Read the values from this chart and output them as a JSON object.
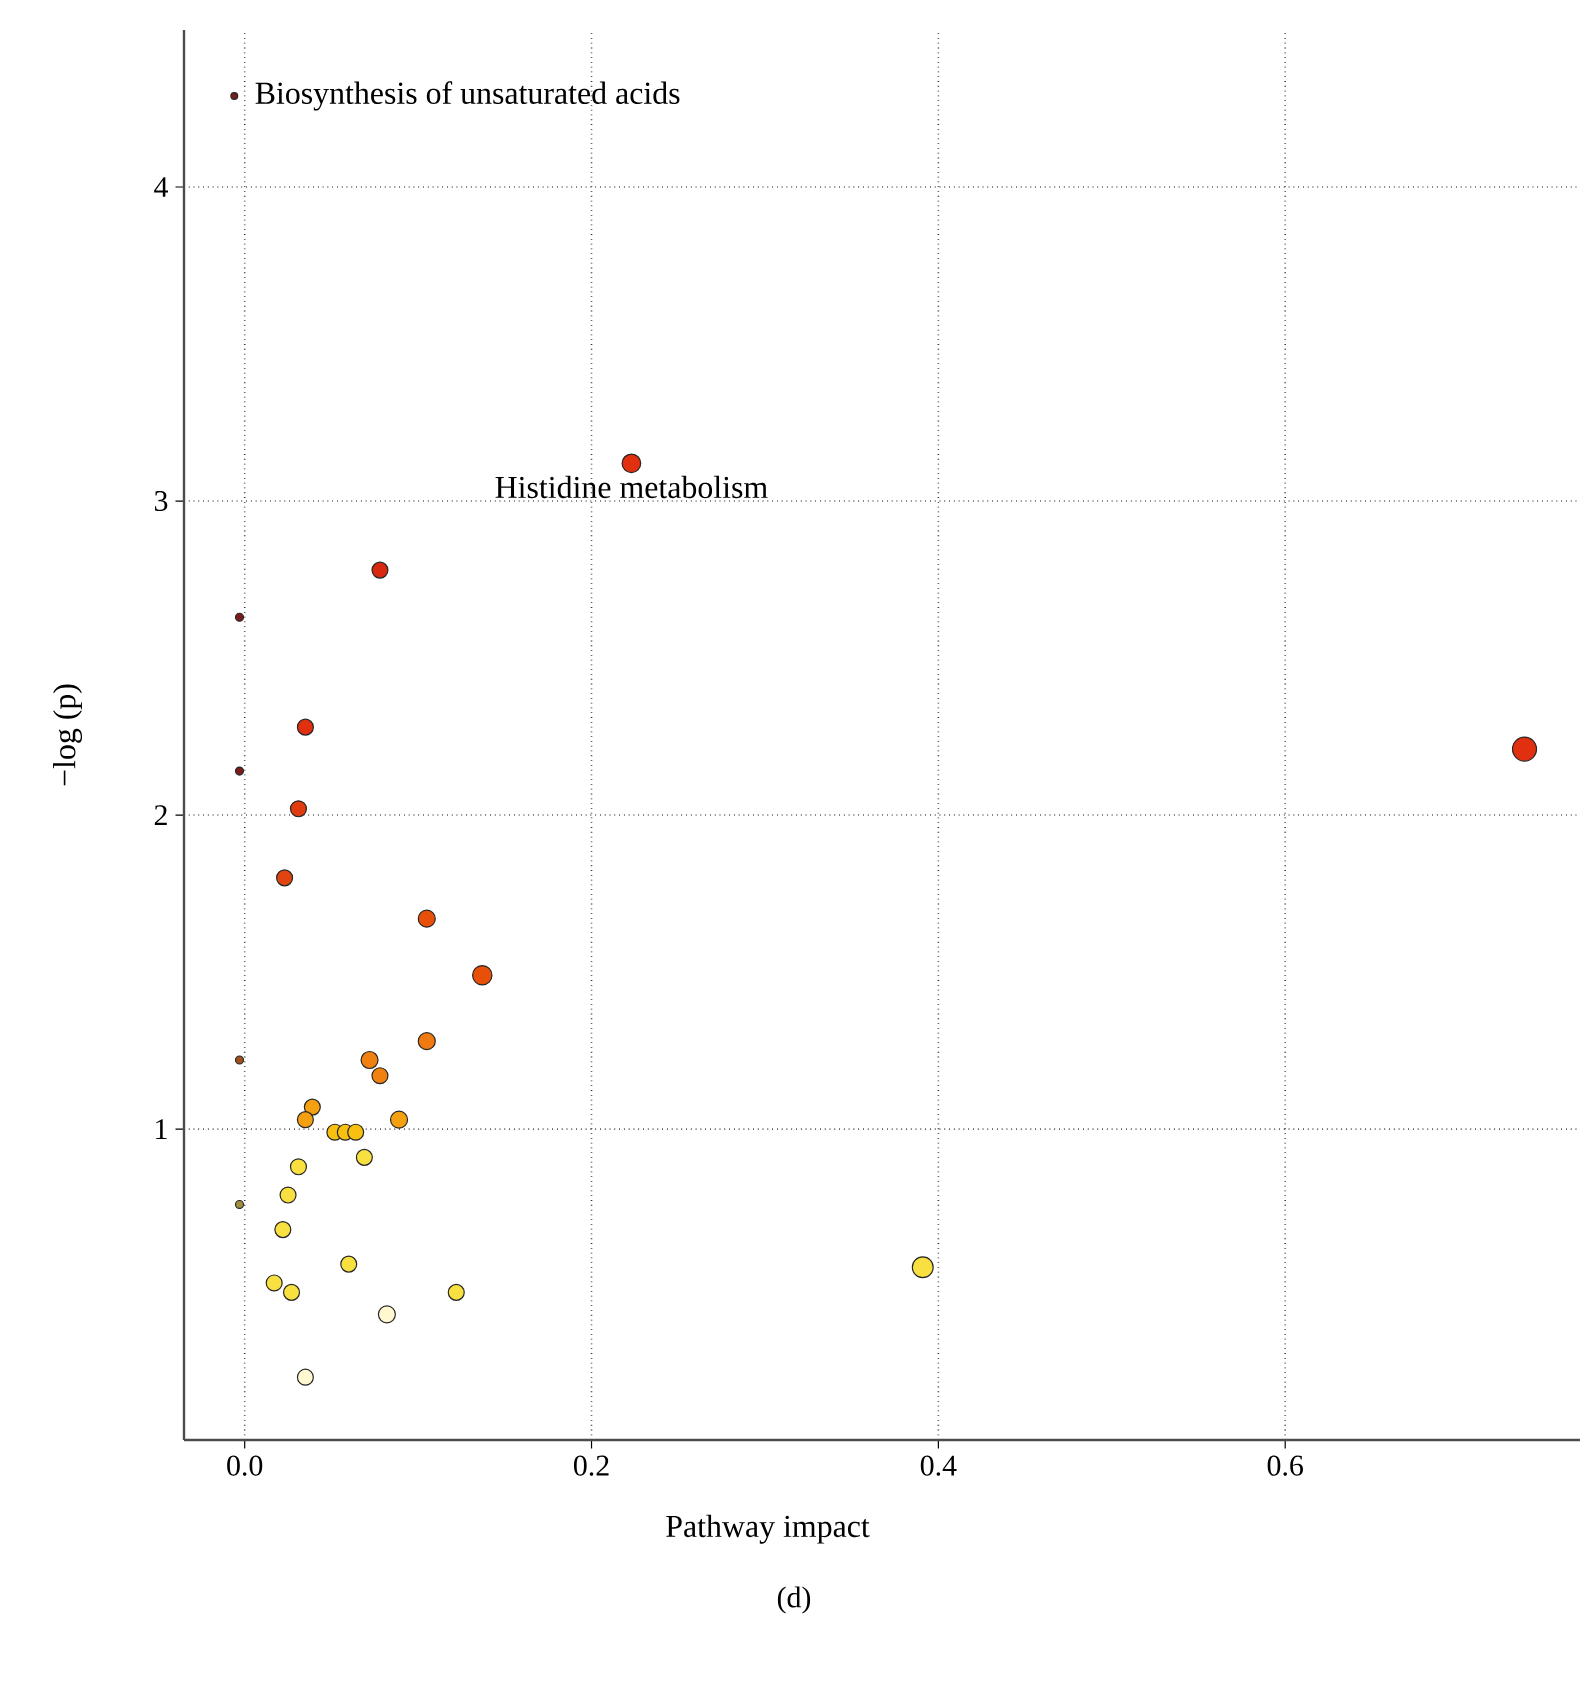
{
  "chart_data": {
    "type": "bubble",
    "xlabel": "Pathway impact",
    "ylabel": "−log (p)",
    "annotations": [
      {
        "text": "Biosynthesis of unsaturated acids",
        "x": -0.006,
        "y": 4.29
      },
      {
        "text": "Histidine metabolism",
        "x": 0.223,
        "y": 3.12
      },
      "(d)"
    ],
    "x": [
      -0.006,
      0.223,
      0.078,
      -0.003,
      0.035,
      -0.003,
      0.031,
      0.023,
      0.105,
      0.137,
      0.105,
      -0.003,
      0.072,
      0.078,
      0.039,
      0.035,
      0.089,
      0.052,
      0.058,
      0.064,
      0.069,
      0.031,
      0.025,
      -0.003,
      0.022,
      0.06,
      0.017,
      0.027,
      0.122,
      0.391,
      0.082,
      0.035,
      0.738
    ],
    "values": [
      4.29,
      3.12,
      2.78,
      2.63,
      2.28,
      2.14,
      2.02,
      1.8,
      1.67,
      1.49,
      1.28,
      1.22,
      1.22,
      1.17,
      1.07,
      1.03,
      1.03,
      0.99,
      0.99,
      0.99,
      0.91,
      0.88,
      0.79,
      0.76,
      0.68,
      0.57,
      0.51,
      0.48,
      0.48,
      0.56,
      0.41,
      0.21,
      2.21
    ],
    "sizes": [
      0.08,
      0.6,
      0.44,
      0.11,
      0.44,
      0.11,
      0.44,
      0.44,
      0.5,
      0.65,
      0.5,
      0.11,
      0.5,
      0.44,
      0.44,
      0.44,
      0.5,
      0.44,
      0.44,
      0.44,
      0.44,
      0.44,
      0.44,
      0.11,
      0.44,
      0.44,
      0.44,
      0.44,
      0.44,
      0.75,
      0.5,
      0.44,
      1
    ],
    "colors": [
      "#7a1c1c",
      "#e0300f",
      "#d8280f",
      "#7a1c1c",
      "#e0300f",
      "#7a1c1c",
      "#e03c0f",
      "#e0450f",
      "#e8500a",
      "#e8500a",
      "#f07a10",
      "#a0501c",
      "#f08010",
      "#f08010",
      "#f5a010",
      "#f5a010",
      "#f5a010",
      "#f8c010",
      "#f8c010",
      "#f8c010",
      "#f8e040",
      "#f8e040",
      "#f8e040",
      "#a09040",
      "#f8e040",
      "#f8e040",
      "#f8e040",
      "#f8e040",
      "#f8e040",
      "#f8e040",
      "#fff8d0",
      "#fff8d0",
      "#e0300f"
    ],
    "xlim": [
      -0.035,
      0.77
    ],
    "ylim": [
      0.01,
      4.5
    ],
    "xticks": [
      {
        "value": 0,
        "label": "0.0"
      },
      0.2,
      0.4,
      0.6
    ],
    "yticks": [
      1,
      2,
      3,
      4
    ],
    "grid": true
  }
}
